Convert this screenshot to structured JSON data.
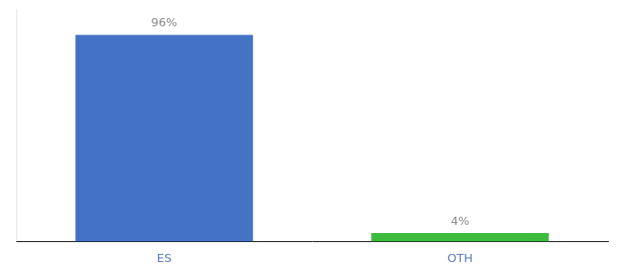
{
  "chart_data": {
    "type": "bar",
    "categories": [
      "ES",
      "OTH"
    ],
    "values": [
      96,
      4
    ],
    "value_labels": [
      "96%",
      "4%"
    ],
    "colors": [
      "#4472c4",
      "#3dbb3d"
    ],
    "ylim": [
      0,
      108
    ],
    "data_labels": true,
    "tick_labels": "x",
    "grid": false
  }
}
